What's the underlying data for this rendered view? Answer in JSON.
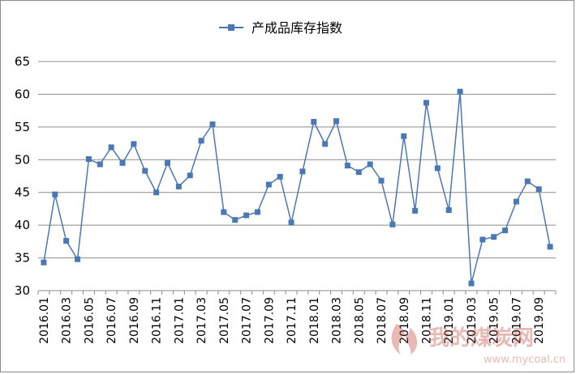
{
  "chart_data": {
    "type": "line",
    "legend_position": "top",
    "grid": true,
    "ylim": [
      30,
      65
    ],
    "yticks": [
      30,
      35,
      40,
      45,
      50,
      55,
      60,
      65
    ],
    "x": [
      "2016.01",
      "2016.02",
      "2016.03",
      "2016.04",
      "2016.05",
      "2016.06",
      "2016.07",
      "2016.08",
      "2016.09",
      "2016.10",
      "2016.11",
      "2016.12",
      "2017.01",
      "2017.02",
      "2017.03",
      "2017.04",
      "2017.05",
      "2017.06",
      "2017.07",
      "2017.08",
      "2017.09",
      "2017.10",
      "2017.11",
      "2017.12",
      "2018.01",
      "2018.02",
      "2018.03",
      "2018.04",
      "2018.05",
      "2018.06",
      "2018.07",
      "2018.08",
      "2018.09",
      "2018.10",
      "2018.11",
      "2018.12",
      "2019.01",
      "2019.02",
      "2019.03",
      "2019.04",
      "2019.05",
      "2019.06",
      "2019.07",
      "2019.08",
      "2019.09",
      "2019.10"
    ],
    "xtick_labels": [
      "2016.01",
      "2016.03",
      "2016.05",
      "2016.07",
      "2016.09",
      "2016.11",
      "2017.01",
      "2017.03",
      "2017.05",
      "2017.07",
      "2017.09",
      "2017.11",
      "2018.01",
      "2018.03",
      "2018.05",
      "2018.07",
      "2018.09",
      "2018.11",
      "2019.01",
      "2019.03",
      "2019.05",
      "2019.07",
      "2019.09"
    ],
    "series": [
      {
        "name": "产成品库存指数",
        "color": "#4a78b4",
        "marker": "square",
        "values": [
          34.3,
          44.7,
          37.6,
          34.8,
          50.1,
          49.3,
          51.9,
          49.5,
          52.4,
          48.3,
          45.0,
          49.5,
          45.9,
          47.6,
          52.9,
          55.4,
          42.0,
          40.8,
          41.5,
          42.0,
          46.2,
          47.4,
          40.4,
          48.2,
          55.8,
          52.4,
          55.9,
          49.1,
          48.1,
          49.3,
          46.8,
          40.1,
          53.6,
          42.2,
          58.7,
          48.7,
          42.3,
          60.4,
          31.1,
          37.8,
          38.2,
          39.2,
          43.6,
          46.7,
          45.5,
          36.7
        ]
      }
    ]
  },
  "watermark": {
    "name": "我的煤炭网",
    "url": "www.mycoal.cn",
    "color": "#c0392b"
  }
}
